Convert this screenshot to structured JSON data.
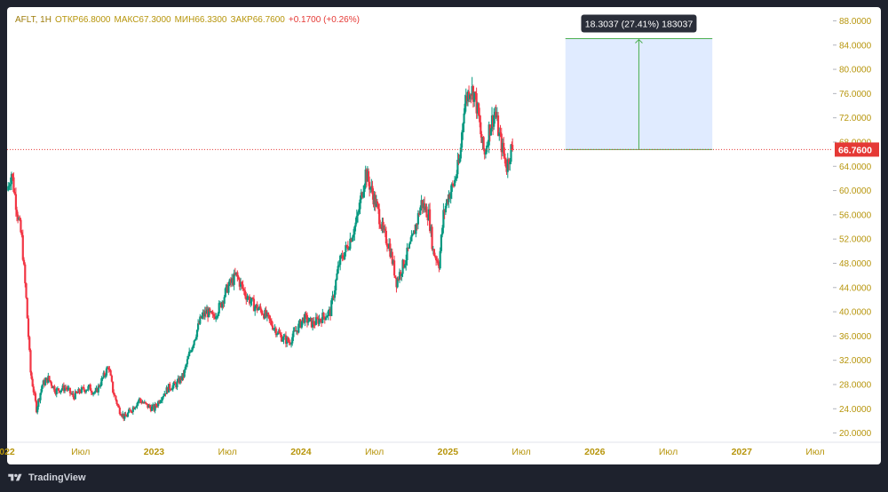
{
  "legend": {
    "symbol": "AFLT, 1H",
    "open_label": "ОТКР",
    "open": "66.8000",
    "high_label": "МАКС",
    "high": "67.3000",
    "low_label": "МИН",
    "low": "66.3300",
    "close_label": "ЗАКР",
    "close": "66.7600",
    "change": "+0.1700 (+0.26%)"
  },
  "footer": {
    "brand": "TradingView"
  },
  "colors": {
    "up": "#089981",
    "down": "#f23645",
    "price_line": "#e53935",
    "axis_text": "#b7950b",
    "measure_fill": "#dbe7ff",
    "measure_line": "#4caf50"
  },
  "chart_data": {
    "type": "candlestick",
    "symbol": "AFLT",
    "interval": "1H",
    "last_price": 66.76,
    "last_price_label": "66.7600",
    "y_ticks": [
      "88.0000",
      "84.0000",
      "80.0000",
      "76.0000",
      "72.0000",
      "68.0000",
      "64.0000",
      "60.0000",
      "56.0000",
      "52.0000",
      "48.0000",
      "44.0000",
      "40.0000",
      "36.0000",
      "32.0000",
      "28.0000",
      "24.0000",
      "20.0000"
    ],
    "ylim": [
      19.5,
      88.8
    ],
    "x_ticks": [
      {
        "label": "022",
        "t": 2022.0
      },
      {
        "label": "Июл",
        "t": 2022.5
      },
      {
        "label": "2023",
        "t": 2023.0
      },
      {
        "label": "Июл",
        "t": 2023.5
      },
      {
        "label": "2024",
        "t": 2024.0
      },
      {
        "label": "Июл",
        "t": 2024.5
      },
      {
        "label": "2025",
        "t": 2025.0
      },
      {
        "label": "Июл",
        "t": 2025.5
      },
      {
        "label": "2026",
        "t": 2026.0
      },
      {
        "label": "Июл",
        "t": 2026.5
      },
      {
        "label": "2027",
        "t": 2027.0
      },
      {
        "label": "Июл",
        "t": 2027.5
      }
    ],
    "series": [
      [
        2022.0,
        60
      ],
      [
        2022.03,
        63
      ],
      [
        2022.06,
        58
      ],
      [
        2022.08,
        55
      ],
      [
        2022.1,
        52
      ],
      [
        2022.13,
        42
      ],
      [
        2022.16,
        30
      ],
      [
        2022.2,
        24
      ],
      [
        2022.24,
        28
      ],
      [
        2022.28,
        29
      ],
      [
        2022.33,
        27
      ],
      [
        2022.4,
        27.5
      ],
      [
        2022.45,
        26
      ],
      [
        2022.5,
        27
      ],
      [
        2022.56,
        27.5
      ],
      [
        2022.6,
        26.5
      ],
      [
        2022.65,
        29
      ],
      [
        2022.69,
        31
      ],
      [
        2022.72,
        27
      ],
      [
        2022.76,
        24
      ],
      [
        2022.8,
        22.5
      ],
      [
        2022.85,
        24
      ],
      [
        2022.9,
        25.5
      ],
      [
        2022.95,
        24.5
      ],
      [
        2023.0,
        24
      ],
      [
        2023.05,
        26
      ],
      [
        2023.1,
        27.5
      ],
      [
        2023.15,
        28
      ],
      [
        2023.2,
        29.5
      ],
      [
        2023.24,
        33
      ],
      [
        2023.28,
        36
      ],
      [
        2023.32,
        39
      ],
      [
        2023.36,
        40
      ],
      [
        2023.4,
        39
      ],
      [
        2023.45,
        41
      ],
      [
        2023.5,
        44
      ],
      [
        2023.56,
        46
      ],
      [
        2023.62,
        43
      ],
      [
        2023.68,
        41
      ],
      [
        2023.74,
        40
      ],
      [
        2023.8,
        38
      ],
      [
        2023.86,
        36
      ],
      [
        2023.92,
        35
      ],
      [
        2023.97,
        37
      ],
      [
        2024.02,
        39
      ],
      [
        2024.08,
        38
      ],
      [
        2024.14,
        39
      ],
      [
        2024.2,
        40
      ],
      [
        2024.26,
        48
      ],
      [
        2024.32,
        51
      ],
      [
        2024.38,
        55
      ],
      [
        2024.44,
        63
      ],
      [
        2024.48,
        60
      ],
      [
        2024.52,
        57
      ],
      [
        2024.56,
        53
      ],
      [
        2024.6,
        51
      ],
      [
        2024.65,
        45
      ],
      [
        2024.7,
        48
      ],
      [
        2024.76,
        52
      ],
      [
        2024.82,
        58
      ],
      [
        2024.87,
        56
      ],
      [
        2024.9,
        50
      ],
      [
        2024.94,
        48
      ],
      [
        2024.97,
        56
      ],
      [
        2025.0,
        59
      ],
      [
        2025.04,
        61
      ],
      [
        2025.08,
        65
      ],
      [
        2025.11,
        74
      ],
      [
        2025.15,
        77
      ],
      [
        2025.18,
        76
      ],
      [
        2025.21,
        72
      ],
      [
        2025.23,
        68
      ],
      [
        2025.25,
        66
      ],
      [
        2025.28,
        70
      ],
      [
        2025.32,
        73
      ],
      [
        2025.35,
        69
      ],
      [
        2025.38,
        66
      ],
      [
        2025.4,
        64
      ],
      [
        2025.43,
        66.8
      ],
      [
        2025.44,
        66.76
      ]
    ],
    "measure": {
      "from_t": 2025.8,
      "to_t": 2026.8,
      "from_price": 66.76,
      "to_price": 85.06,
      "label": "18.3037 (27.41%) 183037"
    }
  }
}
